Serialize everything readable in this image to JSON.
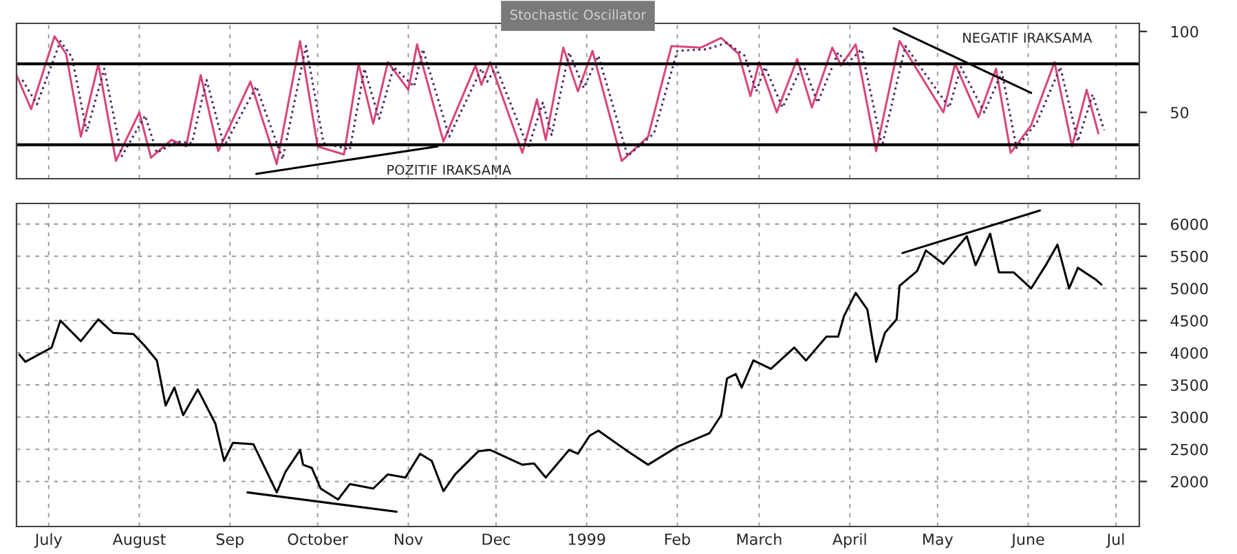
{
  "chart_data": [
    {
      "type": "line",
      "title": "Stochastic Oscillator",
      "xlim": [
        "1998-06-20",
        "1999-07-09"
      ],
      "ylim": [
        9,
        105
      ],
      "yticks": [
        50,
        100
      ],
      "xticks": [
        {
          "value": "1998-07-01",
          "label": null
        },
        {
          "value": "1998-08-01",
          "label": null
        },
        {
          "value": "1998-09-01",
          "label": null
        },
        {
          "value": "1998-10-01",
          "label": null
        },
        {
          "value": "1998-11-01",
          "label": null
        },
        {
          "value": "1998-12-01",
          "label": null
        },
        {
          "value": "1999-01-01",
          "label": null
        },
        {
          "value": "1999-02-01",
          "label": null
        },
        {
          "value": "1999-03-01",
          "label": null
        },
        {
          "value": "1999-04-01",
          "label": null
        },
        {
          "value": "1999-05-01",
          "label": null
        },
        {
          "value": "1999-06-01",
          "label": null
        },
        {
          "value": "1999-07-01",
          "label": null
        }
      ],
      "tick_labels": "y",
      "grid": "x",
      "legend": false,
      "ref_lines": [
        {
          "axis": "y",
          "value": 80,
          "color": "#000000"
        },
        {
          "axis": "y",
          "value": 30,
          "color": "#000000"
        }
      ],
      "annotations": [
        "POZITIF IRAKSAMA",
        "NEGATIF IRAKSAMA"
      ],
      "series": [
        {
          "color": "#d9467a",
          "line_style": "solid",
          "x": [
            "1998-06-20",
            "1998-06-25",
            "1998-07-03",
            "1998-07-07",
            "1998-07-12",
            "1998-07-18",
            "1998-07-24",
            "1998-08-01",
            "1998-08-05",
            "1998-08-12",
            "1998-08-17",
            "1998-08-22",
            "1998-08-28",
            "1998-09-08",
            "1998-09-17",
            "1998-09-25",
            "1998-10-01",
            "1998-10-10",
            "1998-10-15",
            "1998-10-20",
            "1998-10-25",
            "1998-11-01",
            "1998-11-04",
            "1998-11-13",
            "1998-11-24",
            "1998-11-26",
            "1998-11-29",
            "1998-12-10",
            "1998-12-15",
            "1998-12-18",
            "1998-12-24",
            "1998-12-29",
            "1999-01-03",
            "1999-01-13",
            "1999-01-22",
            "1999-01-30",
            "1999-02-09",
            "1999-02-16",
            "1999-02-22",
            "1999-02-26",
            "1999-03-01",
            "1999-03-07",
            "1999-03-14",
            "1999-03-19",
            "1999-03-26",
            "1999-03-29",
            "1999-04-03",
            "1999-04-10",
            "1999-04-18",
            "1999-05-03",
            "1999-05-07",
            "1999-05-15",
            "1999-05-21",
            "1999-05-26",
            "1999-06-02",
            "1999-06-10",
            "1999-06-16",
            "1999-06-21",
            "1999-06-25"
          ],
          "values": [
            73,
            52,
            97,
            86,
            35,
            80,
            20,
            50,
            22,
            33,
            29,
            73,
            26,
            69,
            18,
            94,
            29,
            24,
            80,
            43,
            81,
            64,
            92,
            32,
            79,
            67,
            81,
            25,
            58,
            33,
            90,
            63,
            88,
            20,
            35,
            91,
            90,
            96,
            86,
            60,
            81,
            50,
            83,
            53,
            90,
            79,
            92,
            26,
            94,
            50,
            80,
            47,
            77,
            25,
            42,
            81,
            29,
            64,
            37
          ]
        },
        {
          "color": "#4a2a6a",
          "line_style": "dotted",
          "x": [
            "1998-06-22",
            "1998-06-27",
            "1998-07-05",
            "1998-07-09",
            "1998-07-14",
            "1998-07-20",
            "1998-07-26",
            "1998-08-03",
            "1998-08-07",
            "1998-08-14",
            "1998-08-19",
            "1998-08-24",
            "1998-08-30",
            "1998-09-10",
            "1998-09-19",
            "1998-09-27",
            "1998-10-03",
            "1998-10-12",
            "1998-10-17",
            "1998-10-22",
            "1998-10-27",
            "1998-11-03",
            "1998-11-06",
            "1998-11-15",
            "1998-11-26",
            "1998-11-28",
            "1998-12-01",
            "1998-12-12",
            "1998-12-17",
            "1998-12-20",
            "1998-12-26",
            "1998-12-31",
            "1999-01-05",
            "1999-01-15",
            "1999-01-24",
            "1999-02-01",
            "1999-02-11",
            "1999-02-18",
            "1999-02-24",
            "1999-02-28",
            "1999-03-03",
            "1999-03-09",
            "1999-03-16",
            "1999-03-21",
            "1999-03-28",
            "1999-03-31",
            "1999-04-05",
            "1999-04-12",
            "1999-04-20",
            "1999-05-05",
            "1999-05-09",
            "1999-05-17",
            "1999-05-23",
            "1999-05-28",
            "1999-06-04",
            "1999-06-12",
            "1999-06-18",
            "1999-06-23",
            "1999-06-27"
          ],
          "values": [
            70,
            55,
            94,
            84,
            38,
            77,
            23,
            48,
            25,
            32,
            31,
            70,
            29,
            66,
            21,
            91,
            31,
            27,
            77,
            46,
            78,
            66,
            89,
            35,
            77,
            69,
            78,
            28,
            56,
            36,
            87,
            65,
            85,
            23,
            37,
            88,
            89,
            93,
            85,
            63,
            78,
            53,
            80,
            56,
            87,
            80,
            89,
            29,
            91,
            53,
            78,
            50,
            75,
            28,
            44,
            78,
            32,
            61,
            39
          ]
        },
        {
          "color": "#000000",
          "line_style": "solid",
          "x": [
            "1998-09-10",
            "1998-11-11"
          ],
          "values": [
            12,
            29
          ]
        },
        {
          "color": "#000000",
          "line_style": "solid",
          "x": [
            "1999-04-16",
            "1999-06-02"
          ],
          "values": [
            102,
            62
          ]
        }
      ]
    },
    {
      "type": "line",
      "xlim": [
        "1998-06-20",
        "1999-07-09"
      ],
      "ylim": [
        1300,
        6320
      ],
      "yticks": [
        2000,
        2500,
        3000,
        3500,
        4000,
        4500,
        5000,
        5500,
        6000
      ],
      "xticks": [
        {
          "value": "1998-07-01",
          "label": "July"
        },
        {
          "value": "1998-08-01",
          "label": "August"
        },
        {
          "value": "1998-09-01",
          "label": "Sep"
        },
        {
          "value": "1998-10-01",
          "label": "October"
        },
        {
          "value": "1998-11-01",
          "label": "Nov"
        },
        {
          "value": "1998-12-01",
          "label": "Dec"
        },
        {
          "value": "1999-01-01",
          "label": "1999"
        },
        {
          "value": "1999-02-01",
          "label": "Feb"
        },
        {
          "value": "1999-03-01",
          "label": "March"
        },
        {
          "value": "1999-04-01",
          "label": "April"
        },
        {
          "value": "1999-05-01",
          "label": "May"
        },
        {
          "value": "1999-06-01",
          "label": "June"
        },
        {
          "value": "1999-07-01",
          "label": "Jul"
        }
      ],
      "grid": true,
      "legend": false,
      "series": [
        {
          "color": "#000000",
          "line_style": "solid",
          "x": [
            "1998-06-21",
            "1998-06-23",
            "1998-07-02",
            "1998-07-05",
            "1998-07-12",
            "1998-07-18",
            "1998-07-23",
            "1998-07-30",
            "1998-08-03",
            "1998-08-07",
            "1998-08-10",
            "1998-08-13",
            "1998-08-16",
            "1998-08-21",
            "1998-08-27",
            "1998-08-30",
            "1998-09-02",
            "1998-09-09",
            "1998-09-17",
            "1998-09-20",
            "1998-09-25",
            "1998-09-26",
            "1998-09-29",
            "1998-10-02",
            "1998-10-08",
            "1998-10-12",
            "1998-10-20",
            "1998-10-25",
            "1998-10-31",
            "1998-11-05",
            "1998-11-09",
            "1998-11-13",
            "1998-11-17",
            "1998-11-25",
            "1998-11-29",
            "1998-12-10",
            "1998-12-14",
            "1998-12-18",
            "1998-12-26",
            "1998-12-29",
            "1999-01-02",
            "1999-01-05",
            "1999-01-15",
            "1999-01-22",
            "1999-02-01",
            "1999-02-12",
            "1999-02-16",
            "1999-02-18",
            "1999-02-21",
            "1999-02-23",
            "1999-02-27",
            "1999-03-05",
            "1999-03-13",
            "1999-03-17",
            "1999-03-24",
            "1999-03-28",
            "1999-03-30",
            "1999-04-03",
            "1999-04-07",
            "1999-04-10",
            "1999-04-13",
            "1999-04-17",
            "1999-04-18",
            "1999-04-24",
            "1999-04-27",
            "1999-05-03",
            "1999-05-11",
            "1999-05-14",
            "1999-05-19",
            "1999-05-22",
            "1999-05-27",
            "1999-06-02",
            "1999-06-07",
            "1999-06-11",
            "1999-06-15",
            "1999-06-18",
            "1999-06-24",
            "1999-06-26"
          ],
          "values": [
            3970,
            3860,
            4080,
            4500,
            4180,
            4520,
            4310,
            4290,
            4100,
            3880,
            3180,
            3460,
            3030,
            3430,
            2900,
            2320,
            2600,
            2580,
            1830,
            2150,
            2490,
            2260,
            2210,
            1890,
            1720,
            1960,
            1890,
            2110,
            2060,
            2430,
            2320,
            1850,
            2110,
            2470,
            2490,
            2260,
            2280,
            2060,
            2490,
            2430,
            2710,
            2790,
            2470,
            2260,
            2540,
            2750,
            3030,
            3600,
            3670,
            3460,
            3880,
            3750,
            4080,
            3880,
            4250,
            4250,
            4570,
            4930,
            4670,
            3860,
            4310,
            4520,
            5040,
            5270,
            5590,
            5380,
            5810,
            5360,
            5850,
            5250,
            5250,
            5000,
            5360,
            5680,
            5000,
            5320,
            5140,
            5060
          ]
        },
        {
          "color": "#000000",
          "line_style": "solid",
          "x": [
            "1998-09-07",
            "1998-10-28"
          ],
          "values": [
            1830,
            1530
          ]
        },
        {
          "color": "#000000",
          "line_style": "solid",
          "x": [
            "1999-04-19",
            "1999-06-05"
          ],
          "values": [
            5550,
            6210
          ]
        }
      ]
    }
  ]
}
